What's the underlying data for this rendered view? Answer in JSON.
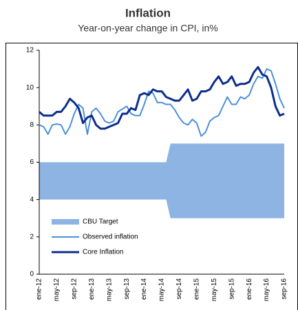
{
  "chart_data": {
    "type": "line",
    "title": "Inflation",
    "subtitle": "Year-on-year change in CPI, in%",
    "categories": [
      "ene-12",
      null,
      null,
      null,
      "may-12",
      null,
      null,
      null,
      "sep-12",
      null,
      null,
      null,
      "ene-13",
      null,
      null,
      null,
      "may-13",
      null,
      null,
      null,
      "sep-13",
      null,
      null,
      null,
      "ene-14",
      null,
      null,
      null,
      "may-14",
      null,
      null,
      null,
      "sep-14",
      null,
      null,
      null,
      "ene-15",
      null,
      null,
      null,
      "may-15",
      null,
      null,
      null,
      "sep-15",
      null,
      null,
      null,
      "ene-16",
      null,
      null,
      null,
      "may-16",
      null,
      null,
      null,
      "sep-16"
    ],
    "band": {
      "name": "CBU Target",
      "color": "#8eb4e3",
      "lower": [
        4,
        4,
        4,
        4,
        4,
        4,
        4,
        4,
        4,
        4,
        4,
        4,
        4,
        4,
        4,
        4,
        4,
        4,
        4,
        4,
        4,
        4,
        4,
        4,
        4,
        4,
        4,
        4,
        4,
        4,
        3,
        3,
        3,
        3,
        3,
        3,
        3,
        3,
        3,
        3,
        3,
        3,
        3,
        3,
        3,
        3,
        3,
        3,
        3,
        3,
        3,
        3,
        3,
        3,
        3,
        3,
        3
      ],
      "upper": [
        6,
        6,
        6,
        6,
        6,
        6,
        6,
        6,
        6,
        6,
        6,
        6,
        6,
        6,
        6,
        6,
        6,
        6,
        6,
        6,
        6,
        6,
        6,
        6,
        6,
        6,
        6,
        6,
        6,
        6,
        7,
        7,
        7,
        7,
        7,
        7,
        7,
        7,
        7,
        7,
        7,
        7,
        7,
        7,
        7,
        7,
        7,
        7,
        7,
        7,
        7,
        7,
        7,
        7,
        7,
        7,
        7
      ]
    },
    "series": [
      {
        "name": "Observed inflation",
        "color": "#4a90d9",
        "values": [
          8.0,
          7.9,
          7.5,
          8.0,
          8.05,
          8.0,
          7.5,
          7.9,
          8.6,
          9.1,
          8.9,
          7.5,
          8.7,
          8.9,
          8.6,
          8.2,
          8.1,
          8.2,
          8.7,
          8.85,
          9.0,
          8.6,
          8.5,
          8.5,
          9.1,
          9.8,
          9.7,
          9.2,
          9.2,
          9.1,
          9.1,
          8.8,
          8.4,
          8.1,
          8.0,
          8.3,
          8.1,
          7.4,
          7.6,
          8.2,
          8.4,
          8.5,
          9.0,
          9.5,
          9.1,
          9.1,
          9.5,
          9.4,
          9.6,
          10.2,
          10.6,
          10.5,
          11.0,
          10.9,
          10.2,
          9.4,
          8.9
        ]
      },
      {
        "name": "Core Inflation",
        "color": "#0b2d8c",
        "values": [
          8.7,
          8.5,
          8.5,
          8.5,
          8.7,
          8.7,
          9.0,
          9.4,
          9.2,
          8.9,
          8.1,
          8.4,
          8.5,
          8.0,
          7.8,
          7.8,
          7.9,
          8.0,
          8.1,
          8.6,
          8.6,
          8.9,
          8.8,
          9.6,
          9.7,
          9.6,
          9.9,
          9.8,
          9.8,
          9.5,
          9.4,
          9.3,
          9.3,
          9.6,
          9.9,
          9.3,
          9.4,
          9.8,
          9.8,
          9.9,
          10.3,
          10.6,
          10.2,
          10.3,
          10.6,
          10.1,
          10.2,
          10.2,
          10.3,
          10.8,
          11.1,
          10.7,
          10.6,
          10.0,
          9.0,
          8.5,
          8.6
        ]
      }
    ],
    "ylim": [
      0,
      12
    ],
    "yticks": [
      0,
      2,
      4,
      6,
      8,
      10,
      12
    ]
  }
}
